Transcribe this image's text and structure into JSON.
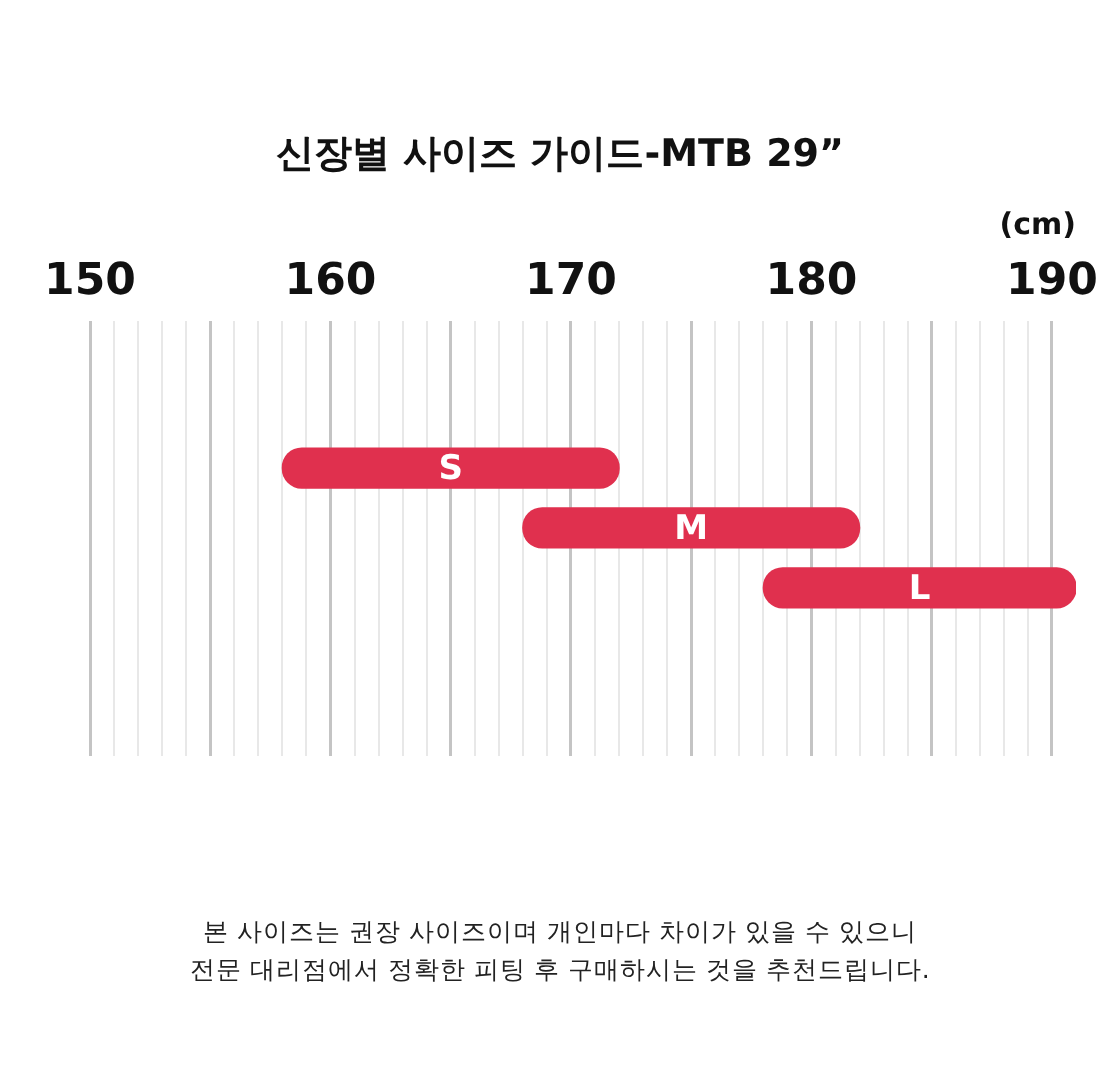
{
  "chart_data": {
    "type": "bar",
    "orientation": "horizontal",
    "title": "신장별 사이즈 가이드-MTB 29”",
    "xlabel": "(cm)",
    "categories": [
      "S",
      "M",
      "L"
    ],
    "base": [
      158,
      168,
      178
    ],
    "values": [
      14,
      14,
      13
    ],
    "color": "#e0304e",
    "xlim": [
      150,
      191
    ],
    "xticks": [
      150,
      {
        "value": 151,
        "label": null
      },
      {
        "value": 152,
        "label": null
      },
      {
        "value": 153,
        "label": null
      },
      {
        "value": 154,
        "label": null
      },
      {
        "value": 155,
        "label": null
      },
      {
        "value": 156,
        "label": null
      },
      {
        "value": 157,
        "label": null
      },
      {
        "value": 158,
        "label": null
      },
      {
        "value": 159,
        "label": null
      },
      160,
      {
        "value": 161,
        "label": null
      },
      {
        "value": 162,
        "label": null
      },
      {
        "value": 163,
        "label": null
      },
      {
        "value": 164,
        "label": null
      },
      {
        "value": 165,
        "label": null
      },
      {
        "value": 166,
        "label": null
      },
      {
        "value": 167,
        "label": null
      },
      {
        "value": 168,
        "label": null
      },
      {
        "value": 169,
        "label": null
      },
      170,
      {
        "value": 171,
        "label": null
      },
      {
        "value": 172,
        "label": null
      },
      {
        "value": 173,
        "label": null
      },
      {
        "value": 174,
        "label": null
      },
      {
        "value": 175,
        "label": null
      },
      {
        "value": 176,
        "label": null
      },
      {
        "value": 177,
        "label": null
      },
      {
        "value": 178,
        "label": null
      },
      {
        "value": 179,
        "label": null
      },
      180,
      {
        "value": 181,
        "label": null
      },
      {
        "value": 182,
        "label": null
      },
      {
        "value": 183,
        "label": null
      },
      {
        "value": 184,
        "label": null
      },
      {
        "value": 185,
        "label": null
      },
      {
        "value": 186,
        "label": null
      },
      {
        "value": 187,
        "label": null
      },
      {
        "value": 188,
        "label": null
      },
      {
        "value": 189,
        "label": null
      },
      190
    ],
    "grid": "x",
    "legend": false,
    "tick_labels": "x",
    "annotations": [
      "본 사이즈는 권장 사이즈이며 개인마다 차이가 있을 수 있으니",
      "전문 대리점에서 정확한 피팅 후 구매하시는 것을 추천드립니다."
    ]
  }
}
